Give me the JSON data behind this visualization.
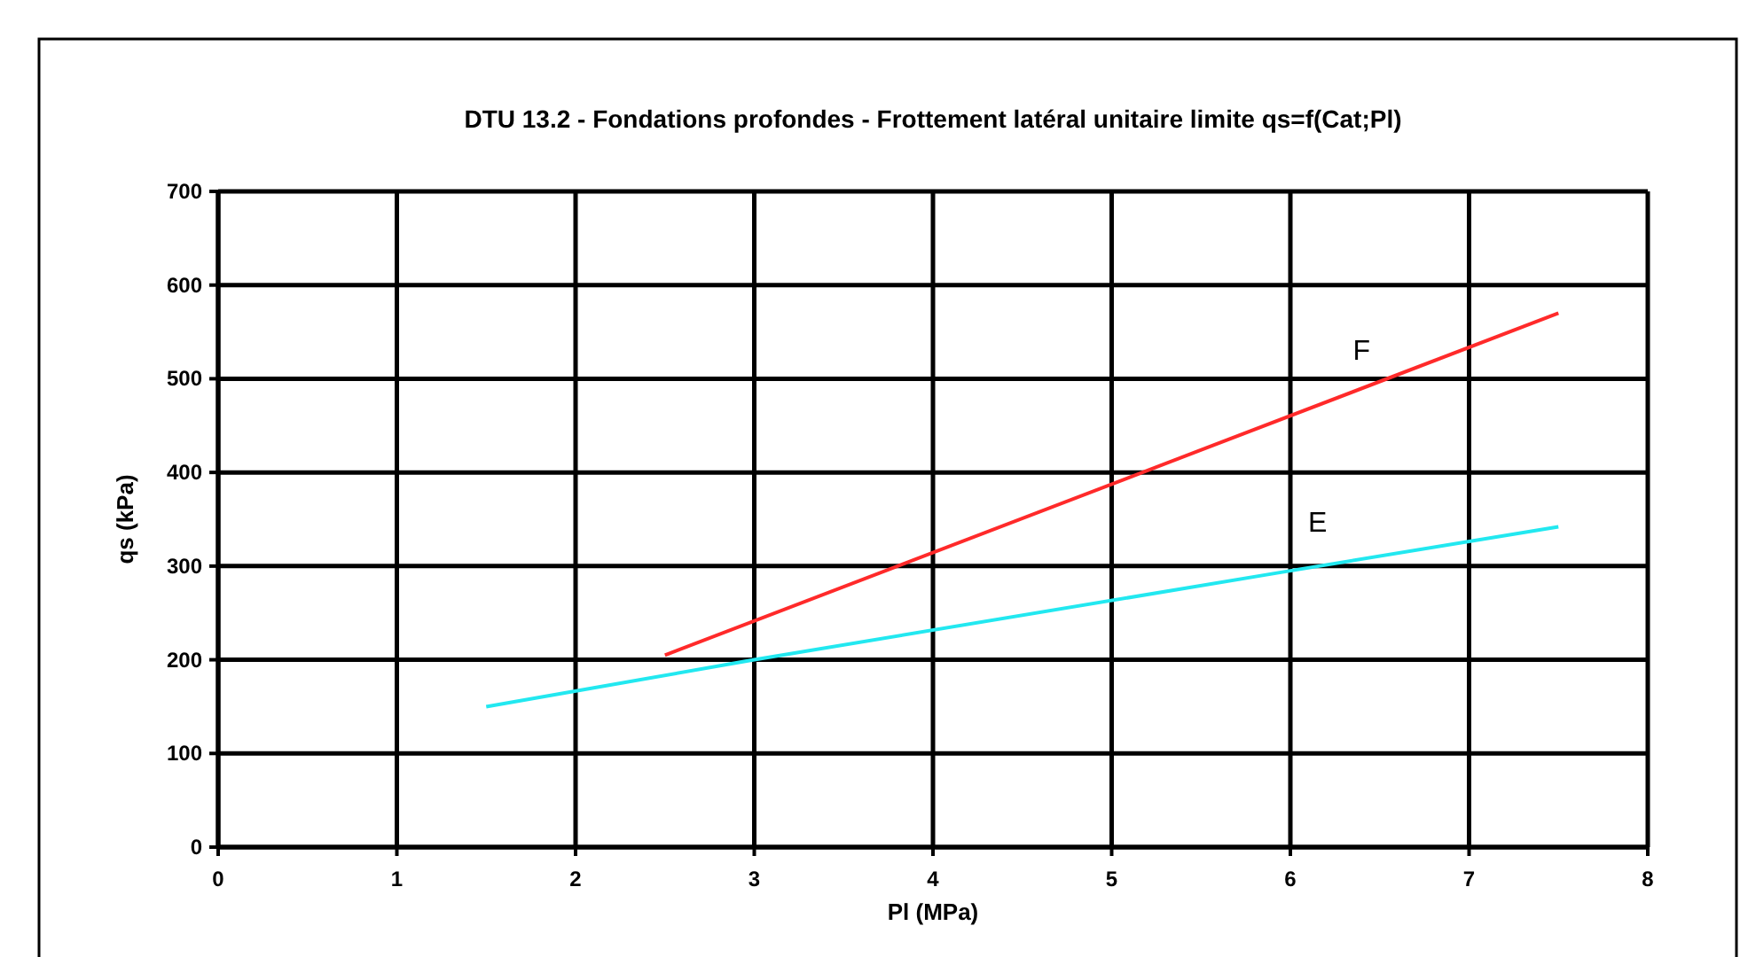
{
  "chart_data": {
    "type": "line",
    "title": "DTU 13.2 - Fondations profondes  - Frottement latéral unitaire limite qs=f(Cat;Pl)",
    "xlabel": "Pl (MPa)",
    "ylabel": "qs (kPa)",
    "xlim": [
      0,
      8
    ],
    "xticks": [
      0,
      1,
      2,
      3,
      4,
      5,
      6,
      7,
      8
    ],
    "ylim": [
      0,
      700
    ],
    "yticks": [
      0,
      100,
      200,
      300,
      400,
      500,
      600,
      700
    ],
    "grid": true,
    "marker": "none",
    "line_style": "solid",
    "series": [
      {
        "name": "F",
        "color": "#ff2a2a",
        "x": [
          2.5,
          7.5
        ],
        "values": [
          205,
          570
        ]
      },
      {
        "name": "E",
        "color": "#22e8f0",
        "x": [
          1.5,
          3,
          6,
          7.5
        ],
        "values": [
          150,
          200,
          295,
          342
        ]
      }
    ]
  }
}
